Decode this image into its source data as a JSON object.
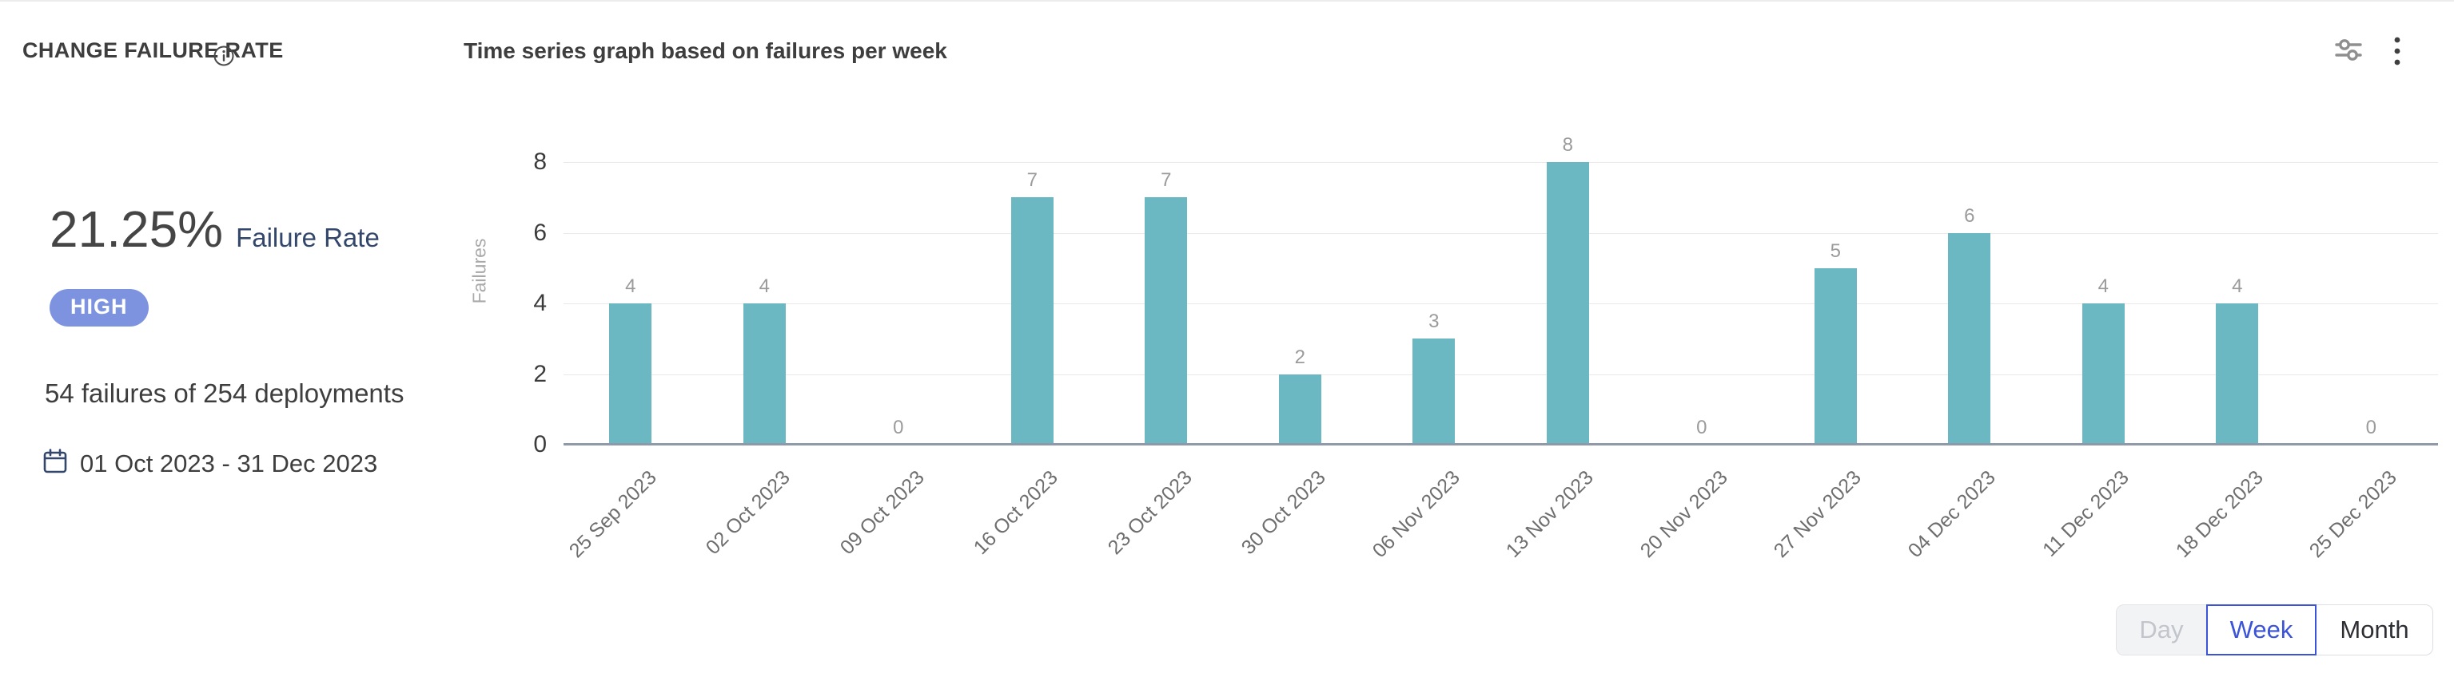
{
  "header": {
    "title": "CHANGE FAILURE RATE",
    "chart_title": "Time series graph based on failures per week",
    "icons": {
      "info": "info-circle-icon",
      "settings": "sliders-icon",
      "menu": "kebab-menu-icon"
    }
  },
  "summary": {
    "rate_value": "21.25%",
    "rate_label": "Failure Rate",
    "severity_badge": "HIGH",
    "failures_summary": "54 failures of 254 deployments",
    "date_range": "01 Oct 2023 - 31 Dec 2023"
  },
  "chart_data": {
    "type": "bar",
    "title": "Time series graph based on failures per week",
    "categories": [
      "25 Sep 2023",
      "02 Oct 2023",
      "09 Oct 2023",
      "16 Oct 2023",
      "23 Oct 2023",
      "30 Oct 2023",
      "06 Nov 2023",
      "13 Nov 2023",
      "20 Nov 2023",
      "27 Nov 2023",
      "04 Dec 2023",
      "11 Dec 2023",
      "18 Dec 2023",
      "25 Dec 2023"
    ],
    "values": [
      4,
      4,
      0,
      7,
      7,
      2,
      3,
      8,
      0,
      5,
      6,
      4,
      4,
      0
    ],
    "xlabel": "",
    "ylabel": "Failures",
    "yticks": [
      0,
      2,
      4,
      6,
      8
    ],
    "ylim": [
      0,
      8
    ],
    "grid": true,
    "legend": false,
    "bar_color": "#6cb8c2",
    "value_label_color": "#9b9b9b"
  },
  "controls": {
    "granularity": [
      {
        "label": "Day",
        "state": "disabled"
      },
      {
        "label": "Week",
        "state": "selected"
      },
      {
        "label": "Month",
        "state": "default"
      }
    ],
    "selected_accent": "#3a53d9"
  },
  "colors": {
    "badge_bg": "#7d93e0",
    "rate_label_color": "#33466b",
    "bar_color": "#6cb8c2"
  }
}
